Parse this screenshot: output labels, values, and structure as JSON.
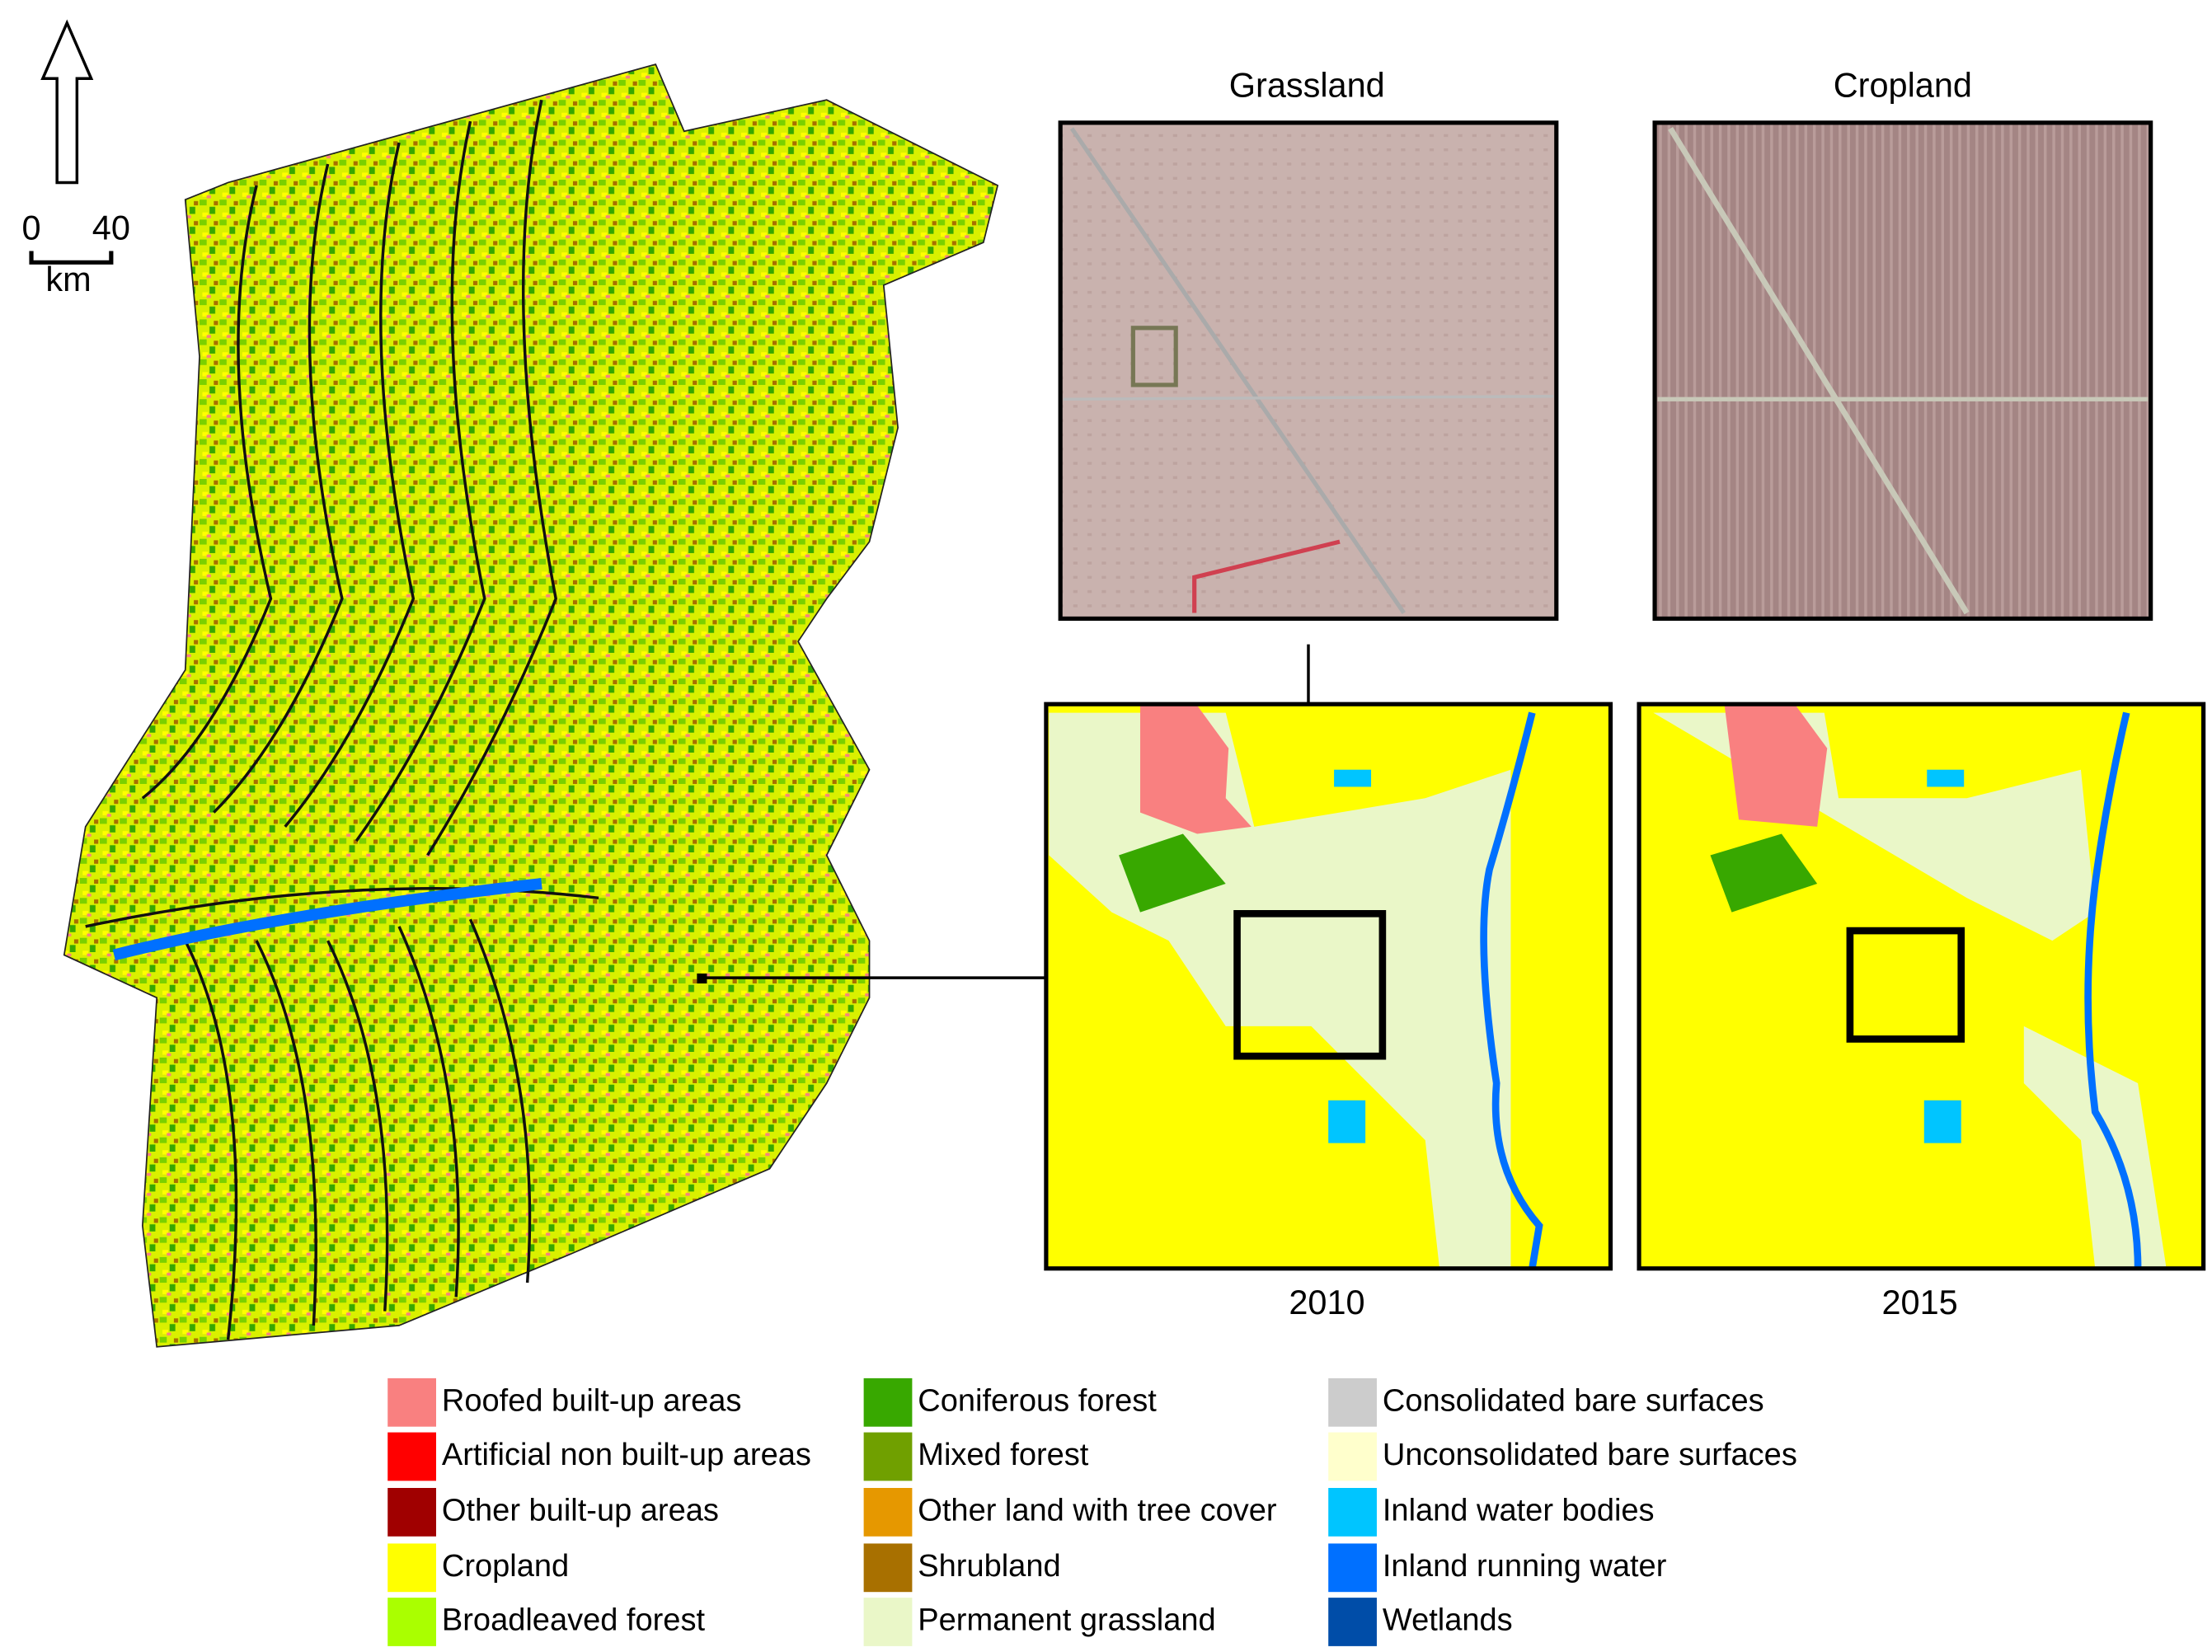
{
  "scale_bar": {
    "start": "0",
    "end": "40",
    "unit": "km"
  },
  "panels": [
    {
      "title": "Grassland"
    },
    {
      "title": "Cropland"
    }
  ],
  "maps": [
    {
      "year": "2010"
    },
    {
      "year": "2015"
    }
  ],
  "legend": [
    {
      "label": "Roofed built-up areas",
      "color": "#f98080"
    },
    {
      "label": "Artificial non built-up areas",
      "color": "#ff0000"
    },
    {
      "label": "Other built-up areas",
      "color": "#a00000"
    },
    {
      "label": "Cropland",
      "color": "#ffff00"
    },
    {
      "label": "Broadleaved forest",
      "color": "#aaff00"
    },
    {
      "label": "Coniferous forest",
      "color": "#38a800"
    },
    {
      "label": "Mixed forest",
      "color": "#70a000"
    },
    {
      "label": "Other land with tree cover",
      "color": "#e69800"
    },
    {
      "label": "Shrubland",
      "color": "#a87000"
    },
    {
      "label": "Permanent grassland",
      "color": "#eaf7c8"
    },
    {
      "label": "Consolidated bare surfaces",
      "color": "#cccccc"
    },
    {
      "label": "Unconsolidated bare surfaces",
      "color": "#ffffcc"
    },
    {
      "label": "Inland water bodies",
      "color": "#00c5ff"
    },
    {
      "label": "Inland running water",
      "color": "#0070ff"
    },
    {
      "label": "Wetlands",
      "color": "#004da8"
    }
  ]
}
